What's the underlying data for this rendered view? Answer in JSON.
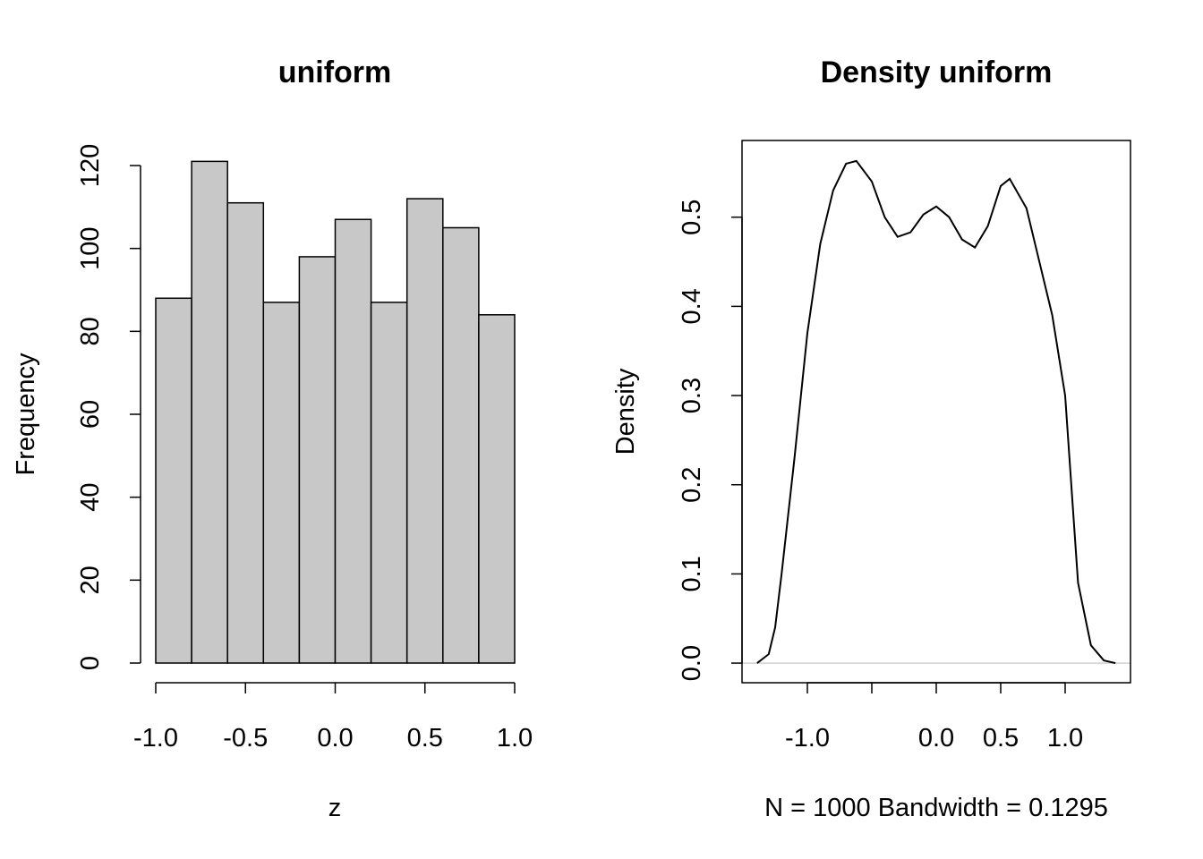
{
  "chart_data": [
    {
      "type": "histogram",
      "title": "uniform",
      "x_label": "z",
      "y_label": "Frequency",
      "bins": [
        -1.0,
        -0.8,
        -0.6,
        -0.4,
        -0.2,
        0.0,
        0.2,
        0.4,
        0.6,
        0.8,
        1.0
      ],
      "values": [
        88,
        121,
        111,
        87,
        98,
        107,
        87,
        112,
        105,
        84
      ],
      "color": "#c8c8c8",
      "xlim": [
        -1,
        1
      ],
      "ylim": [
        0,
        120
      ],
      "xticks": [
        {
          "value": -1,
          "label": "-1.0"
        },
        -0.5,
        {
          "value": 0,
          "label": "0.0"
        },
        0.5,
        {
          "value": 1,
          "label": "1.0"
        }
      ],
      "yticks": [
        0,
        20,
        40,
        60,
        80,
        100,
        120
      ]
    },
    {
      "type": "line",
      "title": "Density uniform",
      "x_label": "N = 1000   Bandwidth = 0.1295",
      "y_label": "Density",
      "x": [
        -1.39,
        -1.3,
        -1.25,
        -1.2,
        -1.1,
        -1.0,
        -0.9,
        -0.8,
        -0.7,
        -0.62,
        -0.5,
        -0.4,
        -0.3,
        -0.2,
        -0.1,
        0.0,
        0.1,
        0.2,
        0.3,
        0.4,
        0.5,
        0.57,
        0.7,
        0.8,
        0.9,
        1.0,
        1.1,
        1.2,
        1.3,
        1.39
      ],
      "values": [
        0.0,
        0.01,
        0.04,
        0.1,
        0.23,
        0.37,
        0.47,
        0.53,
        0.56,
        0.563,
        0.54,
        0.5,
        0.478,
        0.483,
        0.503,
        0.512,
        0.5,
        0.475,
        0.466,
        0.49,
        0.535,
        0.543,
        0.51,
        0.45,
        0.39,
        0.3,
        0.09,
        0.02,
        0.003,
        0.0
      ],
      "color": "#000000",
      "xlim": [
        -1.507,
        1.507
      ],
      "ylim": [
        -0.022,
        0.586
      ],
      "xticks": [
        {
          "value": -1,
          "label": "-1.0"
        },
        {
          "value": -0.5,
          "label": null
        },
        {
          "value": 0,
          "label": "0.0"
        },
        0.5,
        {
          "value": 1,
          "label": "1.0"
        }
      ],
      "yticks": [
        {
          "value": 0,
          "label": "0.0"
        },
        0.1,
        0.2,
        0.3,
        0.4,
        0.5
      ]
    }
  ]
}
